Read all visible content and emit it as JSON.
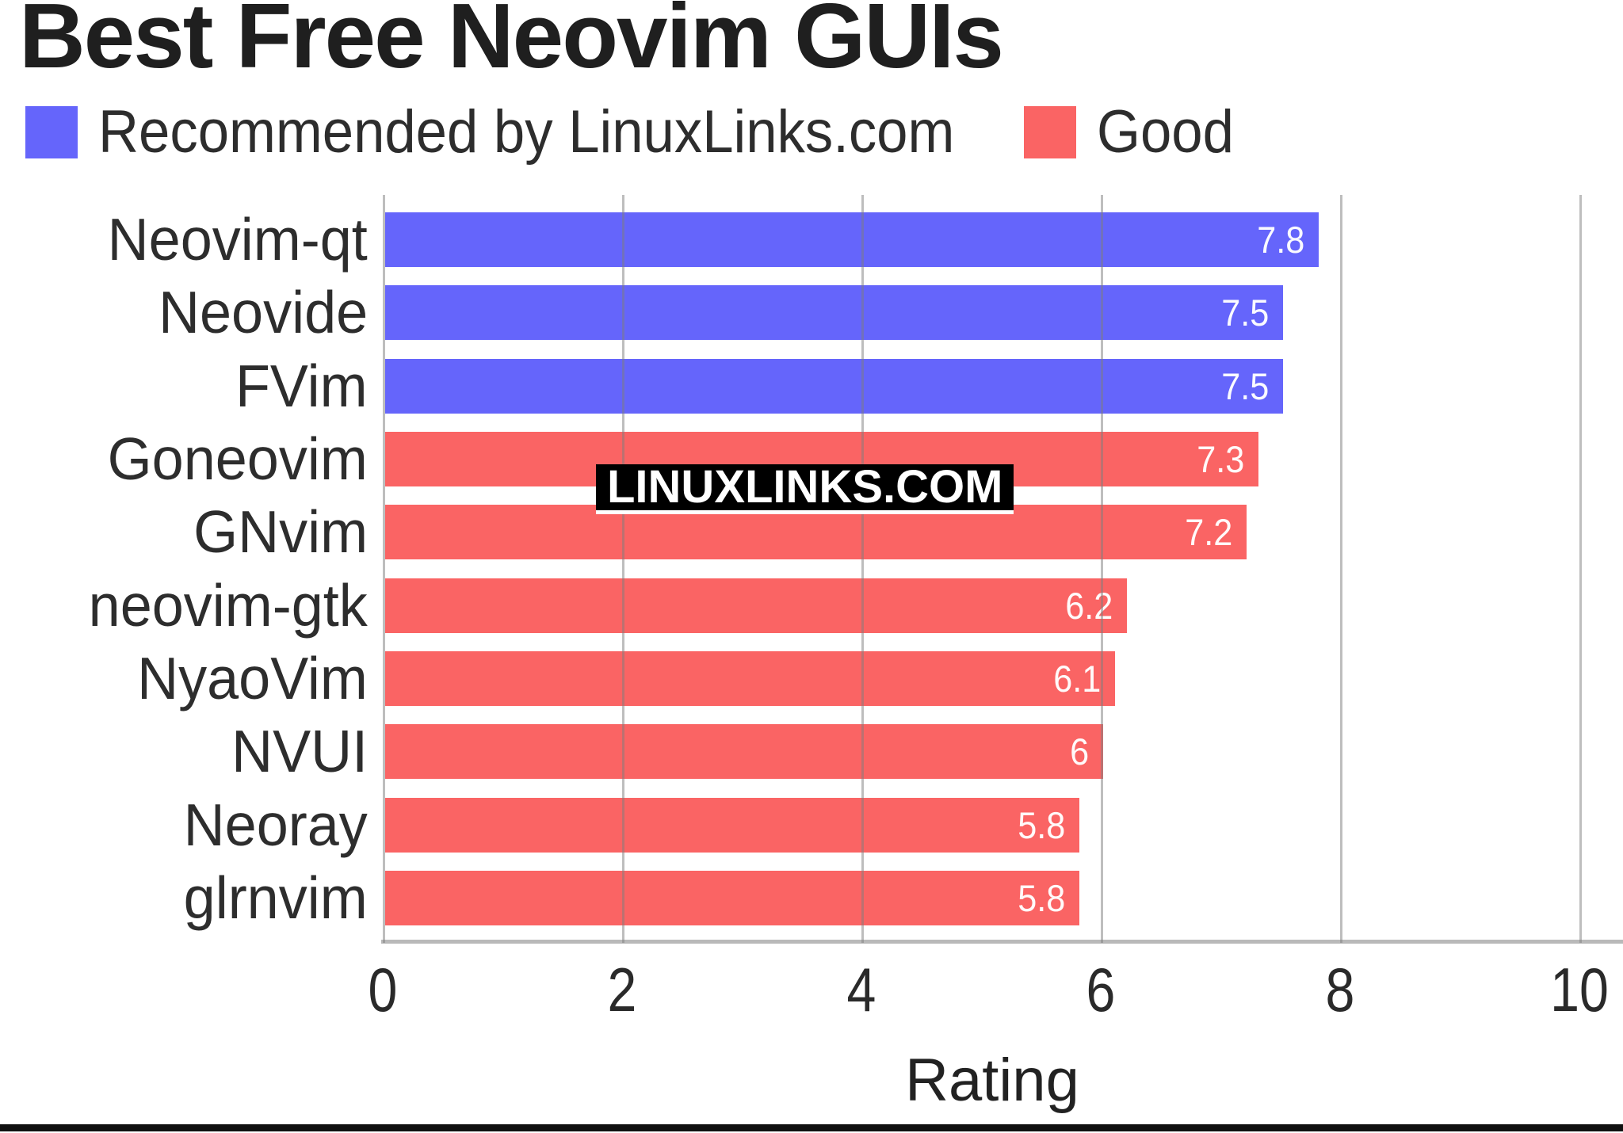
{
  "title": "Best Free Neovim GUIs",
  "legend": {
    "recommended": {
      "label": "Recommended by LinuxLinks.com",
      "color": "#6565fb"
    },
    "good": {
      "label": "Good",
      "color": "#fa6464"
    }
  },
  "watermark": "LINUXLINKS.COM",
  "x_axis": {
    "label": "Rating",
    "tick_labels": [
      "0",
      "2",
      "4",
      "6",
      "8",
      "10"
    ]
  },
  "colors": {
    "recommended": "#6565fb",
    "good": "#fa6464",
    "gridline": "rgba(125,125,125,0.5)",
    "axis_line": "#b9b9b9",
    "value_text": "#ffffff",
    "label_text": "#2d2d2d"
  },
  "chart_data": {
    "type": "bar",
    "orientation": "horizontal",
    "title": "Best Free Neovim GUIs",
    "xlabel": "Rating",
    "xlim": [
      0,
      10
    ],
    "x_ticks": [
      0,
      2,
      4,
      6,
      8,
      10
    ],
    "grid": true,
    "legend_position": "top",
    "categories": [
      "Neovim-qt",
      "Neovide",
      "FVim",
      "Goneovim",
      "GNvim",
      "neovim-gtk",
      "NyaoVim",
      "NVUI",
      "Neoray",
      "glrnvim"
    ],
    "series": [
      {
        "name": "Recommended by LinuxLinks.com",
        "color": "#6565fb",
        "values": [
          7.8,
          7.5,
          7.5,
          null,
          null,
          null,
          null,
          null,
          null,
          null
        ]
      },
      {
        "name": "Good",
        "color": "#fa6464",
        "values": [
          null,
          null,
          null,
          7.3,
          7.2,
          6.2,
          6.1,
          6,
          5.8,
          5.8
        ]
      }
    ],
    "bars": [
      {
        "label": "Neovim-qt",
        "value": 7.8,
        "display": "7.8",
        "group": "recommended"
      },
      {
        "label": "Neovide",
        "value": 7.5,
        "display": "7.5",
        "group": "recommended"
      },
      {
        "label": "FVim",
        "value": 7.5,
        "display": "7.5",
        "group": "recommended"
      },
      {
        "label": "Goneovim",
        "value": 7.3,
        "display": "7.3",
        "group": "good"
      },
      {
        "label": "GNvim",
        "value": 7.2,
        "display": "7.2",
        "group": "good"
      },
      {
        "label": "neovim-gtk",
        "value": 6.2,
        "display": "6.2",
        "group": "good"
      },
      {
        "label": "NyaoVim",
        "value": 6.1,
        "display": "6.1",
        "group": "good"
      },
      {
        "label": "NVUI",
        "value": 6,
        "display": "6",
        "group": "good"
      },
      {
        "label": "Neoray",
        "value": 5.8,
        "display": "5.8",
        "group": "good"
      },
      {
        "label": "glrnvim",
        "value": 5.8,
        "display": "5.8",
        "group": "good"
      }
    ]
  }
}
